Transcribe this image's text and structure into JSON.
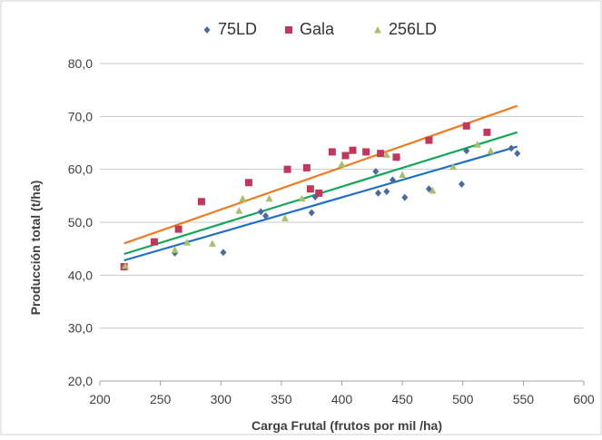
{
  "chart_data": {
    "type": "scatter",
    "xlabel": "Carga Frutal (frutos por mil /ha)",
    "ylabel": "Producción total (t/ha)",
    "xlim": [
      200,
      600
    ],
    "ylim": [
      20,
      80
    ],
    "xticks": [
      200,
      250,
      300,
      350,
      400,
      450,
      500,
      550,
      600
    ],
    "xtick_labels": [
      "200",
      "250",
      "300",
      "350",
      "400",
      "450",
      "500",
      "550",
      "600"
    ],
    "yticks": [
      20,
      30,
      40,
      50,
      60,
      70,
      80
    ],
    "ytick_labels": [
      "20,0",
      "30,0",
      "40,0",
      "50,0",
      "60,0",
      "70,0",
      "80,0"
    ],
    "grid": "horizontal",
    "legend_position": "top",
    "series": [
      {
        "name": "75LD",
        "marker": "diamond",
        "color": "#4a6c9b",
        "points": [
          [
            220,
            41.5
          ],
          [
            262,
            44.2
          ],
          [
            302,
            44.3
          ],
          [
            333,
            52.0
          ],
          [
            337,
            51.2
          ],
          [
            375,
            51.8
          ],
          [
            378,
            54.8
          ],
          [
            428,
            59.6
          ],
          [
            430,
            55.5
          ],
          [
            437,
            55.8
          ],
          [
            442,
            58.0
          ],
          [
            446,
            62.2
          ],
          [
            452,
            54.7
          ],
          [
            472,
            56.3
          ],
          [
            499,
            57.2
          ],
          [
            503,
            63.5
          ],
          [
            540,
            64.0
          ],
          [
            545,
            63.0
          ]
        ],
        "trend": {
          "x": [
            220,
            545
          ],
          "y": [
            42.8,
            64.3
          ],
          "color": "#1f6fc7"
        }
      },
      {
        "name": "Gala",
        "marker": "square",
        "color": "#c0395c",
        "points": [
          [
            220,
            41.6
          ],
          [
            245,
            46.3
          ],
          [
            265,
            48.7
          ],
          [
            284,
            53.9
          ],
          [
            323,
            57.5
          ],
          [
            355,
            60.0
          ],
          [
            371,
            60.3
          ],
          [
            374,
            56.3
          ],
          [
            381,
            55.5
          ],
          [
            392,
            63.3
          ],
          [
            403,
            62.6
          ],
          [
            409,
            63.6
          ],
          [
            420,
            63.3
          ],
          [
            432,
            63.0
          ],
          [
            445,
            62.3
          ],
          [
            472,
            65.5
          ],
          [
            503,
            68.2
          ],
          [
            520,
            67.0
          ]
        ],
        "trend": {
          "x": [
            220,
            545
          ],
          "y": [
            46.0,
            72.0
          ],
          "color": "#ec7a1f"
        }
      },
      {
        "name": "256LD",
        "marker": "triangle",
        "color": "#a8c06e",
        "points": [
          [
            221,
            41.8
          ],
          [
            262,
            44.8
          ],
          [
            272,
            46.2
          ],
          [
            293,
            46.0
          ],
          [
            315,
            52.2
          ],
          [
            318,
            54.5
          ],
          [
            340,
            54.5
          ],
          [
            353,
            50.8
          ],
          [
            367,
            54.5
          ],
          [
            400,
            61.0
          ],
          [
            437,
            62.8
          ],
          [
            450,
            59.0
          ],
          [
            475,
            56.0
          ],
          [
            492,
            60.5
          ],
          [
            512,
            64.7
          ],
          [
            523,
            63.5
          ]
        ],
        "trend": {
          "x": [
            220,
            545
          ],
          "y": [
            44.0,
            67.0
          ],
          "color": "#13a657"
        }
      }
    ]
  }
}
